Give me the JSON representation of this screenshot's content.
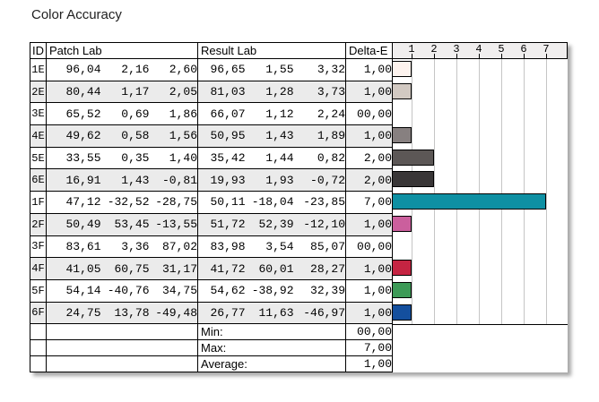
{
  "title": "Color Accuracy",
  "table": {
    "headers": {
      "id": "ID",
      "patch": "Patch Lab",
      "result": "Result Lab",
      "delta": "Delta-E"
    },
    "rows": [
      {
        "id": "1E",
        "patch": [
          "96,04",
          "2,16",
          "2,60"
        ],
        "result": [
          "96,65",
          "1,55",
          "3,32"
        ],
        "delta": "1,00"
      },
      {
        "id": "2E",
        "patch": [
          "80,44",
          "1,17",
          "2,05"
        ],
        "result": [
          "81,03",
          "1,28",
          "3,73"
        ],
        "delta": "1,00"
      },
      {
        "id": "3E",
        "patch": [
          "65,52",
          "0,69",
          "1,86"
        ],
        "result": [
          "66,07",
          "1,12",
          "2,24"
        ],
        "delta": "00,00"
      },
      {
        "id": "4E",
        "patch": [
          "49,62",
          "0,58",
          "1,56"
        ],
        "result": [
          "50,95",
          "1,43",
          "1,89"
        ],
        "delta": "1,00"
      },
      {
        "id": "5E",
        "patch": [
          "33,55",
          "0,35",
          "1,40"
        ],
        "result": [
          "35,42",
          "1,44",
          "0,82"
        ],
        "delta": "2,00"
      },
      {
        "id": "6E",
        "patch": [
          "16,91",
          "1,43",
          "-0,81"
        ],
        "result": [
          "19,93",
          "1,93",
          "-0,72"
        ],
        "delta": "2,00"
      },
      {
        "id": "1F",
        "patch": [
          "47,12",
          "-32,52",
          "-28,75"
        ],
        "result": [
          "50,11",
          "-18,04",
          "-23,85"
        ],
        "delta": "7,00"
      },
      {
        "id": "2F",
        "patch": [
          "50,49",
          "53,45",
          "-13,55"
        ],
        "result": [
          "51,72",
          "52,39",
          "-12,10"
        ],
        "delta": "1,00"
      },
      {
        "id": "3F",
        "patch": [
          "83,61",
          "3,36",
          "87,02"
        ],
        "result": [
          "83,98",
          "3,54",
          "85,07"
        ],
        "delta": "00,00"
      },
      {
        "id": "4F",
        "patch": [
          "41,05",
          "60,75",
          "31,17"
        ],
        "result": [
          "41,72",
          "60,01",
          "28,27"
        ],
        "delta": "1,00"
      },
      {
        "id": "5F",
        "patch": [
          "54,14",
          "-40,76",
          "34,75"
        ],
        "result": [
          "54,62",
          "-38,92",
          "32,39"
        ],
        "delta": "1,00"
      },
      {
        "id": "6F",
        "patch": [
          "24,75",
          "13,78",
          "-49,48"
        ],
        "result": [
          "26,77",
          "11,63",
          "-46,97"
        ],
        "delta": "1,00"
      }
    ],
    "summary": [
      {
        "label": "Min:",
        "value": "00,00"
      },
      {
        "label": "Max:",
        "value": "7,00"
      },
      {
        "label": "Average:",
        "value": "1,00"
      }
    ]
  },
  "chart_data": {
    "type": "bar",
    "orientation": "horizontal",
    "title": "Delta-E per patch",
    "categories": [
      "1E",
      "2E",
      "3E",
      "4E",
      "5E",
      "6E",
      "1F",
      "2F",
      "3F",
      "4F",
      "5F",
      "6F"
    ],
    "values": [
      1,
      1,
      0,
      1,
      2,
      2,
      7,
      1,
      0,
      1,
      1,
      1
    ],
    "bar_colors": [
      "#fdf3ee",
      "#d2c9c2",
      null,
      "#878080",
      "#5c5756",
      "#393637",
      "#0e90a3",
      "#cb5f9d",
      null,
      "#c52442",
      "#3d9a57",
      "#144f9e"
    ],
    "xlim": [
      0,
      7
    ],
    "tick_labels": [
      "1",
      "2",
      "3",
      "4",
      "5",
      "6",
      "7"
    ],
    "grid": true,
    "gridline_color": "#c5c5c5",
    "scale_header_bg": "#f0eeee",
    "bar_border_color": "#000000",
    "stripe_color": "#ebebeb"
  }
}
